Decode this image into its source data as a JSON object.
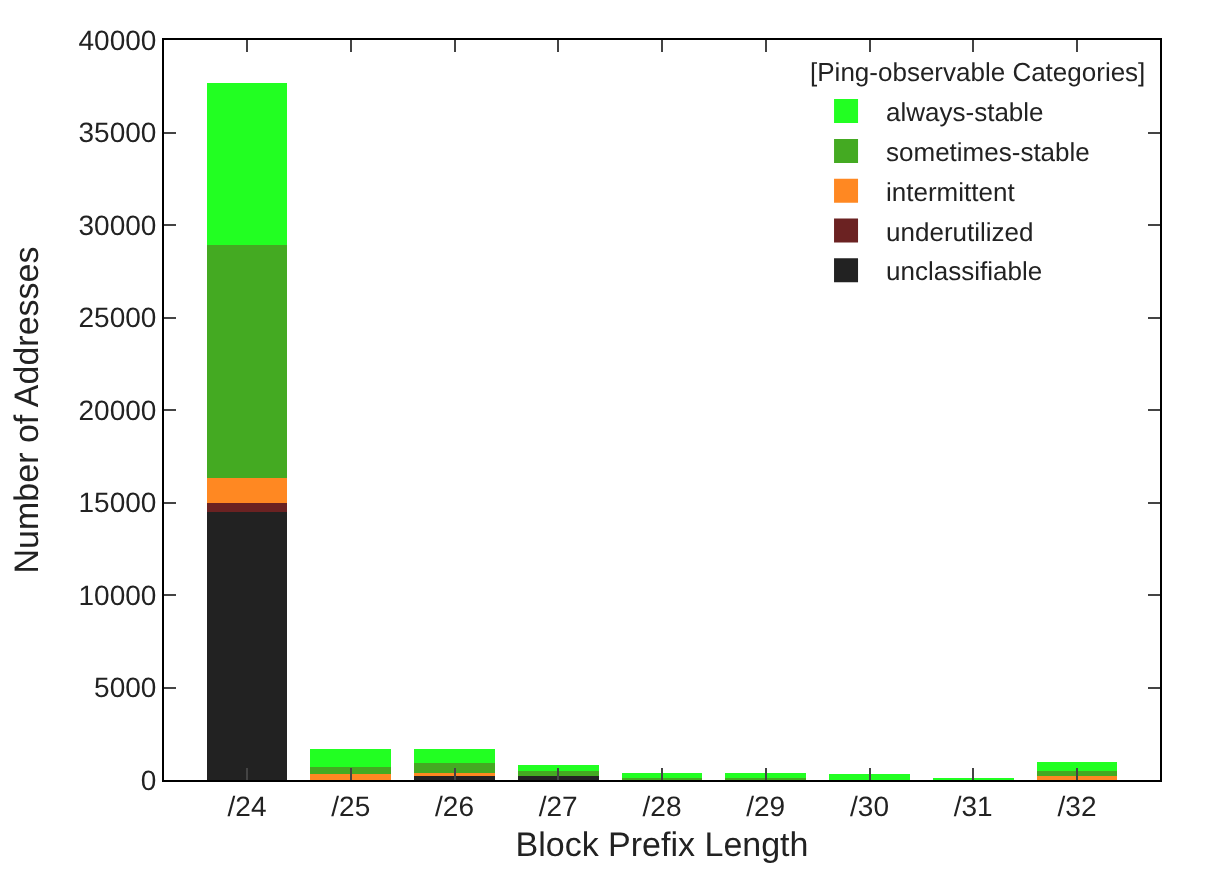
{
  "chart_data": {
    "type": "bar",
    "stacked": true,
    "xlabel": "Block Prefix Length",
    "ylabel": "Number of Addresses",
    "legend_title": "[Ping-observable Categories]",
    "legend": "top right",
    "categories": [
      "/24",
      "/25",
      "/26",
      "/27",
      "/28",
      "/29",
      "/30",
      "/31",
      "/32"
    ],
    "ylim": [
      0,
      40000
    ],
    "yticks": [
      0,
      5000,
      10000,
      15000,
      20000,
      25000,
      30000,
      35000,
      40000
    ],
    "series": [
      {
        "name": "unclassifiable",
        "color": "#222222",
        "values": [
          14500,
          100,
          300,
          200,
          0,
          0,
          0,
          0,
          0
        ]
      },
      {
        "name": "underutilized",
        "color": "#6b2222",
        "values": [
          500,
          0,
          0,
          0,
          0,
          0,
          0,
          0,
          0
        ]
      },
      {
        "name": "intermittent",
        "color": "#ff8822",
        "values": [
          1300,
          200,
          100,
          0,
          0,
          0,
          0,
          0,
          200
        ]
      },
      {
        "name": "sometimes-stable",
        "color": "#44aa22",
        "values": [
          12600,
          400,
          500,
          300,
          100,
          100,
          100,
          0,
          300
        ]
      },
      {
        "name": "always-stable",
        "color": "#22ff22",
        "values": [
          8800,
          1000,
          800,
          300,
          300,
          300,
          200,
          100,
          500
        ]
      }
    ]
  }
}
